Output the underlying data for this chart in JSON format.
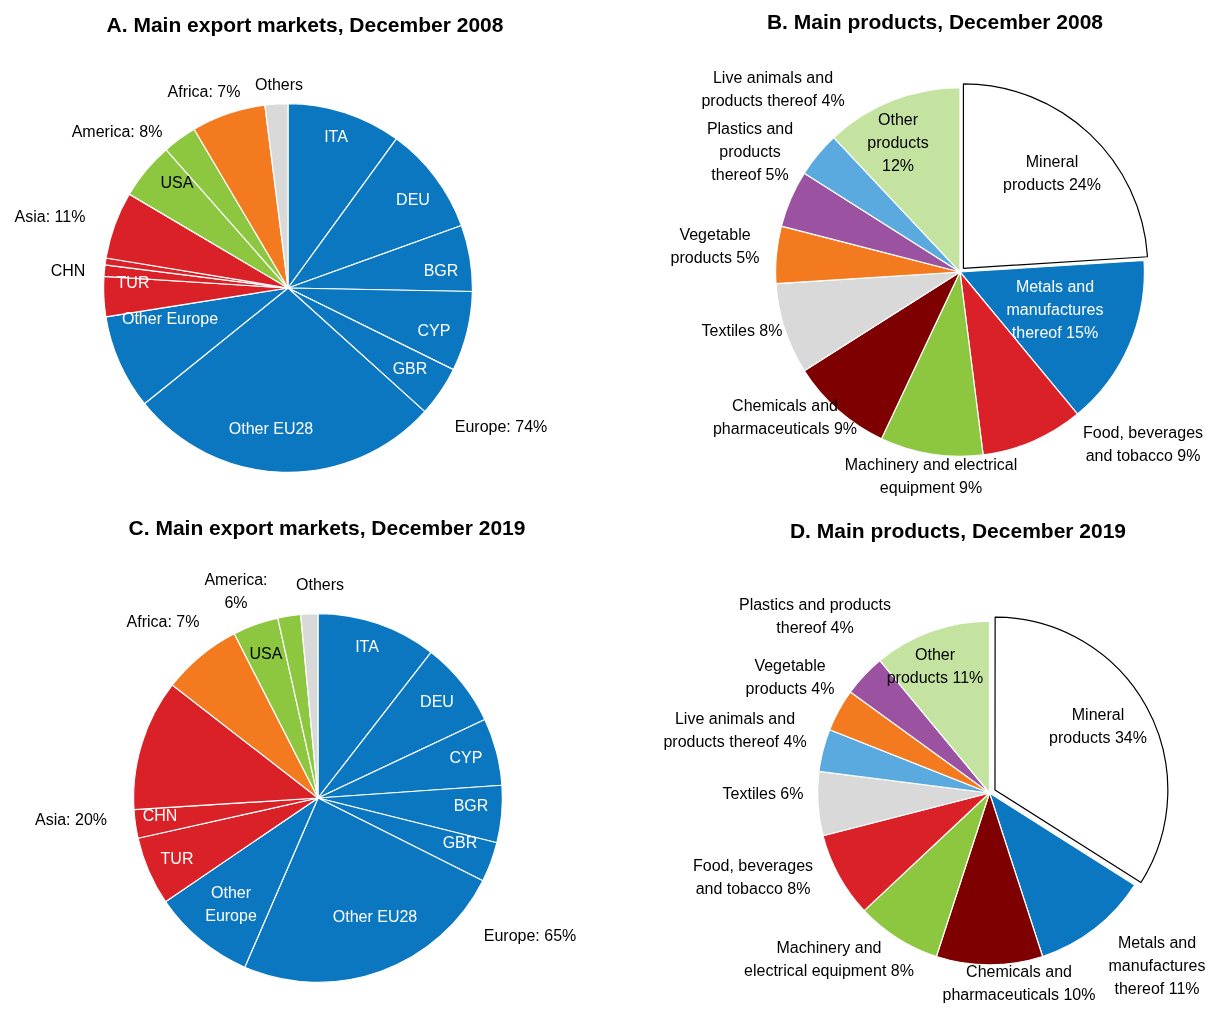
{
  "chart_data": [
    {
      "type": "pie",
      "title": "A. Main export markets, December 2008",
      "categories": [
        "ITA",
        "DEU",
        "BGR",
        "CYP",
        "GBR",
        "Other EU28",
        "Other Europe",
        "TUR",
        null,
        "CHN",
        null,
        "USA",
        null,
        null,
        "Others"
      ],
      "values": [
        10,
        9.5,
        5.8,
        7,
        4.4,
        27.5,
        8.3,
        3.5,
        1,
        0.6,
        5.9,
        5,
        3,
        6.5,
        2
      ],
      "colors": [
        "#0a77c0",
        "#0a77c0",
        "#0a77c0",
        "#0a77c0",
        "#0a77c0",
        "#0a77c0",
        "#0a77c0",
        "#da2128",
        "#da2128",
        "#da2128",
        "#da2128",
        "#8dc63f",
        "#8dc63f",
        "#f47a20",
        "#d9d9d9"
      ],
      "annotations": [
        "Europe: 74%",
        "Asia: 11%",
        "America: 8%",
        "Africa: 7%"
      ]
    },
    {
      "type": "pie",
      "title": "B. Main products, December 2008",
      "categories": [
        "Mineral products",
        "Metals and manufactures thereof",
        "Food, beverages and tobacco",
        "Machinery and electrical equipment",
        "Chemicals and pharmaceuticals",
        "Textiles",
        "Vegetable products",
        "Plastics and products thereof",
        "Live animals and products thereof",
        "Other products"
      ],
      "values": [
        24,
        15,
        9,
        9,
        9,
        8,
        5,
        5,
        4,
        12
      ],
      "value_labels": [
        "24%",
        "15%",
        "9%",
        "9%",
        "9%",
        "8%",
        "5%",
        "5%",
        "4%",
        "12%"
      ],
      "colors": [
        "#ffffff",
        "#0a77c0",
        "#da2128",
        "#8dc63f",
        "#7f0000",
        "#d9d9d9",
        "#f47a20",
        "#9b52a0",
        "#5aaae0",
        "#c4e3a0"
      ]
    },
    {
      "type": "pie",
      "title": "C. Main export markets, December 2019",
      "categories": [
        "ITA",
        "DEU",
        "CYP",
        "BGR",
        "GBR",
        "Other EU28",
        "Other Europe",
        "TUR",
        "CHN",
        null,
        null,
        "USA",
        null,
        "Others"
      ],
      "values": [
        10.5,
        7.5,
        5.9,
        5,
        3.5,
        24.1,
        9,
        6,
        2.5,
        11.5,
        7,
        4,
        2,
        1.5
      ],
      "colors": [
        "#0a77c0",
        "#0a77c0",
        "#0a77c0",
        "#0a77c0",
        "#0a77c0",
        "#0a77c0",
        "#0a77c0",
        "#da2128",
        "#da2128",
        "#da2128",
        "#f47a20",
        "#8dc63f",
        "#8dc63f",
        "#d9d9d9"
      ],
      "annotations": [
        "Europe: 65%",
        "Asia: 20%",
        "America: 6%",
        "Africa: 7%"
      ]
    },
    {
      "type": "pie",
      "title": "D. Main products, December 2019",
      "categories": [
        "Mineral products",
        "Metals and manufactures thereof",
        "Chemicals and pharmaceuticals",
        "Machinery and electrical equipment",
        "Food, beverages and tobacco",
        "Textiles",
        "Live animals and products thereof",
        "Vegetable products",
        "Plastics and products thereof",
        "Other products"
      ],
      "values": [
        34,
        11,
        10,
        8,
        8,
        6,
        4,
        4,
        4,
        11
      ],
      "value_labels": [
        "34%",
        "11%",
        "10%",
        "8%",
        "8%",
        "6%",
        "4%",
        "4%",
        "4%",
        "11%"
      ],
      "colors": [
        "#ffffff",
        "#0a77c0",
        "#7f0000",
        "#8dc63f",
        "#da2128",
        "#d9d9d9",
        "#5aaae0",
        "#f47a20",
        "#9b52a0",
        "#c4e3a0"
      ]
    }
  ]
}
